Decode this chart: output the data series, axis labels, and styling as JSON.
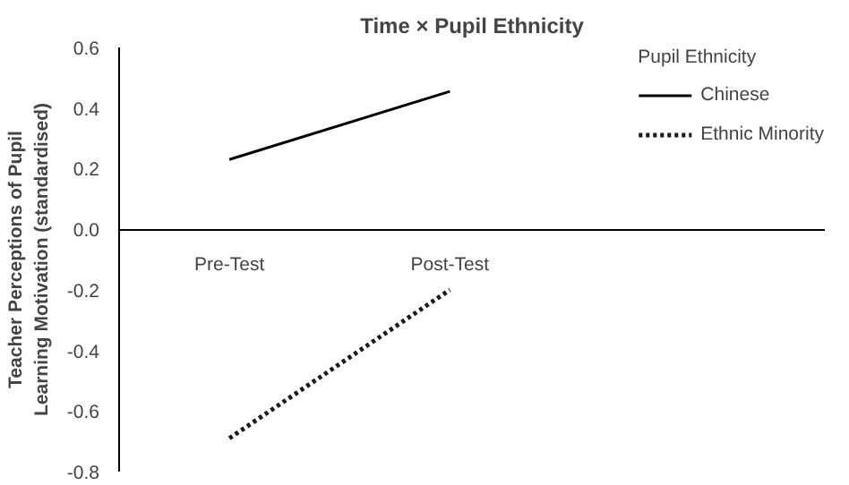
{
  "chart_data": {
    "type": "line",
    "title": "Time × Pupil Ethnicity",
    "ylabel": "Teacher Perceptions of Pupil\nLearning Motivation (standardised)",
    "legend_title": "Pupil Ethnicity",
    "categories": [
      "Pre-Test",
      "Post-Test"
    ],
    "series": [
      {
        "name": "Chinese",
        "color": "#000000",
        "values": [
          0.23,
          0.455
        ],
        "line_style": "solid"
      },
      {
        "name": "Ethnic Minority",
        "color": "#1a1a1a",
        "values": [
          -0.69,
          -0.2
        ],
        "line_style": "dotted"
      }
    ],
    "ylim": [
      -0.8,
      0.6
    ],
    "yticks": [
      {
        "value": -0.8,
        "label": "-0.8"
      },
      {
        "value": -0.6,
        "label": "-0.6"
      },
      {
        "value": -0.4,
        "label": "-0.4"
      },
      {
        "value": -0.2,
        "label": "-0.2"
      },
      {
        "value": 0,
        "label": "0.0"
      },
      {
        "value": 0.2,
        "label": "0.2"
      },
      {
        "value": 0.4,
        "label": "0.4"
      },
      {
        "value": 0.6,
        "label": "0.6"
      }
    ],
    "grid": false,
    "legend": "top right",
    "marker": "none"
  }
}
